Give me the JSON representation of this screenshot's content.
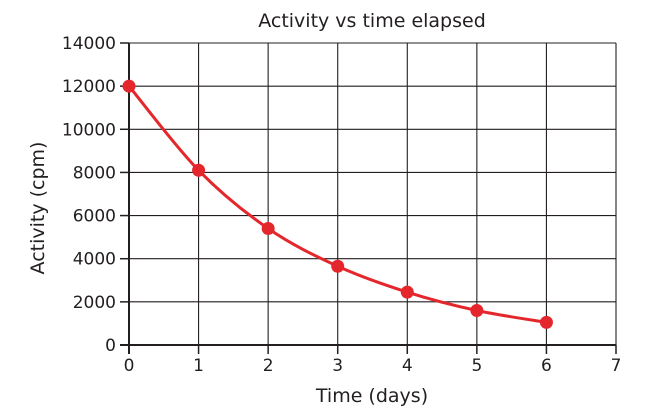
{
  "chart_data": {
    "type": "line",
    "title": "Activity vs time elapsed",
    "xlabel": "Time (days)",
    "ylabel": "Activity (cpm)",
    "xlim": [
      0,
      7
    ],
    "ylim": [
      0,
      14000
    ],
    "xticks": [
      "0",
      "1",
      "2",
      "3",
      "4",
      "5",
      "6",
      "7"
    ],
    "yticks": [
      "0",
      "2000",
      "4000",
      "6000",
      "8000",
      "10000",
      "12000",
      "14000"
    ],
    "grid": true,
    "legend": "none",
    "smooth": true,
    "series": [
      {
        "color": "#e3272c",
        "x": [
          0,
          1,
          2,
          3,
          4,
          5,
          6
        ],
        "y": [
          12000,
          8100,
          5400,
          3650,
          2450,
          1600,
          1050
        ]
      }
    ]
  }
}
